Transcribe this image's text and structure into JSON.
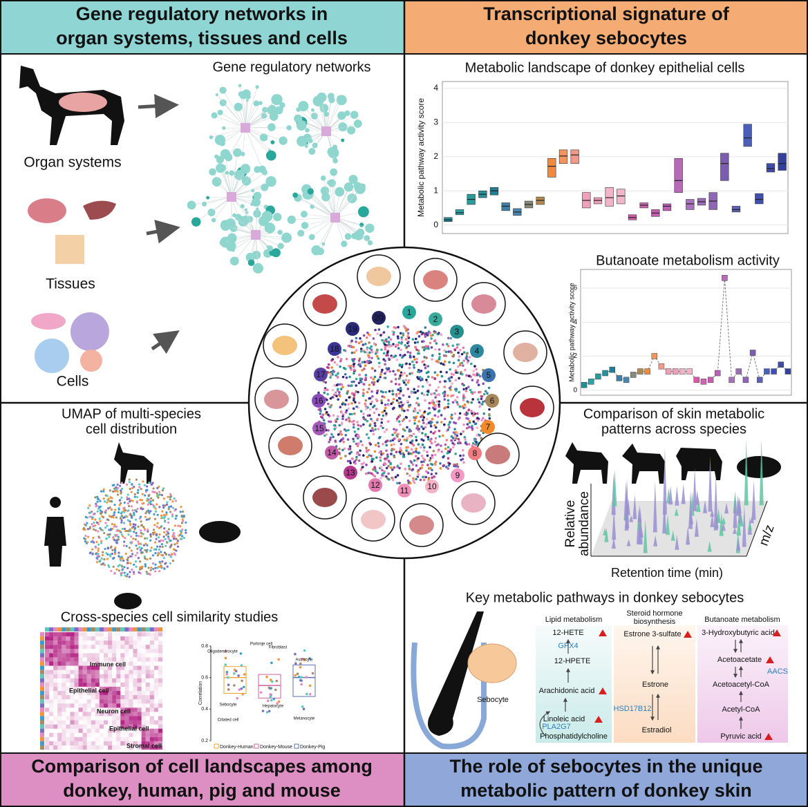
{
  "top_left": {
    "header": [
      "Gene regulatory networks in",
      "organ systems, tissues and cells"
    ],
    "network_title": "Gene regulatory networks",
    "organ_systems": "Organ systems",
    "tissues": "Tissues",
    "cells": "Cells"
  },
  "top_right": {
    "header": [
      "Transcriptional signature of",
      "donkey sebocytes"
    ],
    "metabolic_landscape": {
      "type": "box",
      "title": "Metabolic landscape of donkey epithelial cells",
      "y_label": "Metabolic pathway activity score",
      "ylim": [
        -0.25,
        4.2
      ],
      "yticks": [
        0,
        1,
        2,
        3,
        4
      ],
      "grid": true,
      "q1": [
        0.1,
        0.3,
        0.6,
        0.8,
        0.88,
        0.42,
        0.28,
        0.5,
        0.6,
        1.4,
        1.8,
        1.8,
        0.5,
        0.62,
        0.55,
        0.62,
        0.15,
        0.5,
        0.25,
        0.42,
        0.95,
        0.45,
        0.58,
        0.45,
        1.3,
        0.38,
        2.3,
        0.62,
        1.55,
        1.6
      ],
      "median": [
        0.15,
        0.36,
        0.75,
        0.9,
        1.0,
        0.55,
        0.38,
        0.6,
        0.72,
        1.72,
        2.02,
        2.05,
        0.72,
        0.72,
        0.8,
        0.85,
        0.22,
        0.58,
        0.35,
        0.55,
        1.3,
        0.62,
        0.68,
        0.7,
        1.8,
        0.45,
        2.55,
        0.75,
        1.65,
        1.8
      ],
      "q3": [
        0.22,
        0.45,
        0.9,
        1.0,
        1.1,
        0.65,
        0.48,
        0.7,
        0.82,
        1.95,
        2.2,
        2.2,
        0.95,
        0.8,
        1.1,
        1.05,
        0.3,
        0.65,
        0.45,
        0.62,
        1.95,
        0.75,
        0.78,
        0.95,
        2.1,
        0.55,
        2.95,
        0.92,
        1.8,
        2.1
      ],
      "colors": [
        "#1f8f99",
        "#2aa3a8",
        "#2c9a9a",
        "#27909b",
        "#1e7f96",
        "#3e7fa8",
        "#4a86b0",
        "#8a8a7a",
        "#b08850",
        "#f08a3c",
        "#f5955a",
        "#f29a8a",
        "#f0a0bb",
        "#ef9fb6",
        "#f5b3c9",
        "#f2b6c8",
        "#d85ba8",
        "#cf64b0",
        "#c85cb0",
        "#bb62b4",
        "#b86ab8",
        "#a873ba",
        "#9b6cb8",
        "#8e66b5",
        "#7a5cb0",
        "#5e62b4",
        "#4a5fb8",
        "#4050b0",
        "#3e4ea8",
        "#35409a"
      ]
    },
    "butanoate": {
      "type": "line",
      "title": "Butanoate metabolism activity",
      "y_label": "Metabolic pathway activity score",
      "ylim": [
        -0.3,
        7.1
      ],
      "yticks": [
        0,
        2,
        4,
        6
      ],
      "grid": true,
      "line_color": "#777777",
      "values": [
        0.3,
        0.5,
        0.8,
        1.0,
        1.2,
        0.7,
        0.6,
        0.9,
        1.1,
        1.1,
        2.0,
        1.4,
        1.1,
        1.1,
        1.1,
        1.1,
        0.6,
        0.5,
        0.6,
        1.0,
        6.6,
        0.6,
        1.1,
        0.6,
        2.2,
        0.6,
        1.1,
        1.1,
        1.5,
        1.1
      ]
    },
    "center_numbers": [
      "1",
      "2",
      "3",
      "4",
      "5",
      "6",
      "7",
      "8",
      "9",
      "10",
      "11",
      "12",
      "13",
      "14",
      "15",
      "16",
      "17",
      "18",
      "19",
      "20"
    ]
  },
  "bottom_left": {
    "footer": [
      "Comparison of cell landscapes among",
      "donkey, human, pig and mouse"
    ],
    "umap_title": [
      "UMAP of multi-species",
      "cell distribution"
    ],
    "similarity_title": "Cross-species cell similarity studies",
    "heatmap_labels": [
      "Immune cell",
      "Epithelial cell",
      "Neuron cell",
      "Epithelial cell",
      "Stromal cell"
    ],
    "correlation": {
      "type": "box",
      "y_label": "Correlation",
      "ylim": [
        0.2,
        0.8
      ],
      "yticks": [
        0.2,
        0.4,
        0.6,
        0.8
      ],
      "series": [
        {
          "name": "Donkey-Human",
          "color": "#f0a23a",
          "q1": 0.5,
          "median": 0.6,
          "q3": 0.67
        },
        {
          "name": "Donkey-Mouse",
          "color": "#d35fa0",
          "q1": 0.47,
          "median": 0.55,
          "q3": 0.62
        },
        {
          "name": "Donkey-Pig",
          "color": "#5b6fb8",
          "q1": 0.48,
          "median": 0.6,
          "q3": 0.68
        }
      ],
      "point_labels": [
        "Oligodendrocyte",
        "Purkinje cell",
        "Astrocyte",
        "Fibroblast",
        "Sebocyte",
        "Ciliated cell",
        "Hepatocyte",
        "Melanocyte"
      ]
    }
  },
  "bottom_right": {
    "footer": [
      "The role of sebocytes in the unique",
      "metabolic pattern of donkey skin"
    ],
    "species_title": [
      "Comparison of skin metabolic",
      "patterns across species"
    ],
    "ms_y_label": [
      "Relative",
      "abundance"
    ],
    "ms_x_label": "Retention time (min)",
    "ms_z_label": "m/z",
    "pathways_title": "Key metabolic pathways in donkey sebocytes",
    "sebocyte": "Sebocyte",
    "lipid": {
      "title": "Lipid metabolism",
      "steps": [
        "12-HETE",
        "12-HPETE",
        "Arachidonic acid",
        "Linoleic acid",
        "Phosphatidylcholine"
      ],
      "enzymes": [
        "GPX4",
        "PLA2G7"
      ]
    },
    "steroid": {
      "title": [
        "Steroid hormone",
        "biosynthesis"
      ],
      "steps": [
        "Estrone 3-sulfate",
        "Estrone",
        "Estradiol"
      ],
      "enzymes": [
        "HSD17B12"
      ]
    },
    "butanoate": {
      "title": "Butanoate metabolism",
      "steps": [
        "3-Hydroxybutyric acid",
        "Acetoacetate",
        "Acetoacetyl-CoA",
        "Acetyl-CoA",
        "Pyruvic acid"
      ],
      "enzymes": [
        "AACS"
      ]
    }
  }
}
